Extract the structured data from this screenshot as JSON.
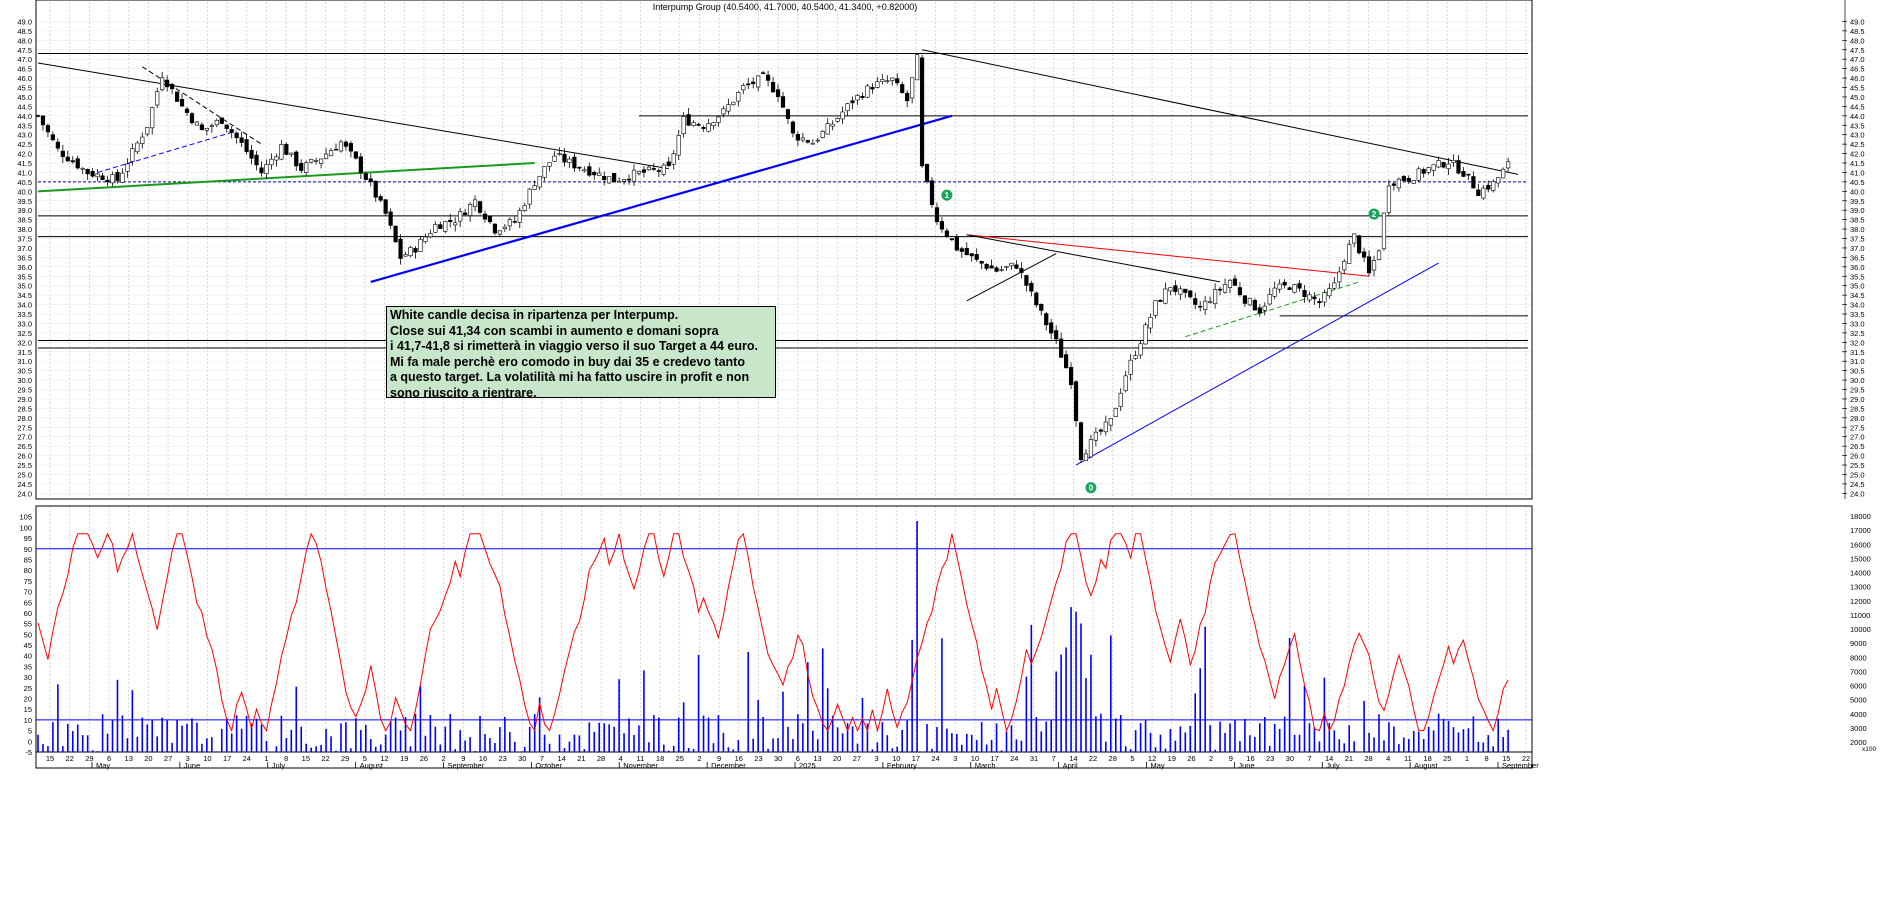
{
  "chart_data": [
    {
      "type": "candlestick",
      "title": "Interpump Group (40.5400, 41.7000, 40.5400, 41.3400, +0.82000)",
      "ylim": [
        23.7,
        49.5
      ],
      "yticks": [
        "24.0",
        "24.5",
        "25.0",
        "25.5",
        "26.0",
        "26.5",
        "27.0",
        "27.5",
        "28.0",
        "28.5",
        "29.0",
        "29.5",
        "30.0",
        "30.5",
        "31.0",
        "31.5",
        "32.0",
        "32.5",
        "33.0",
        "33.5",
        "34.0",
        "34.5",
        "35.0",
        "35.5",
        "36.0",
        "36.5",
        "37.0",
        "37.5",
        "38.0",
        "38.5",
        "39.0",
        "39.5",
        "40.0",
        "40.5",
        "41.0",
        "41.5",
        "42.0",
        "42.5",
        "43.0",
        "43.5",
        "44.0",
        "44.5",
        "45.0",
        "45.5",
        "46.0",
        "46.5",
        "47.0",
        "47.5",
        "48.0",
        "48.5",
        "49.0"
      ],
      "grid": true,
      "price_path": [
        [
          0,
          44.0
        ],
        [
          4,
          42.2
        ],
        [
          10,
          41.0
        ],
        [
          16,
          40.6
        ],
        [
          22,
          43.5
        ],
        [
          25,
          46.2
        ],
        [
          29,
          44.5
        ],
        [
          33,
          43.2
        ],
        [
          37,
          43.8
        ],
        [
          41,
          42.5
        ],
        [
          45,
          41.0
        ],
        [
          49,
          42.4
        ],
        [
          53,
          41.2
        ],
        [
          57,
          41.8
        ],
        [
          61,
          42.6
        ],
        [
          64,
          41.6
        ],
        [
          67,
          40.3
        ],
        [
          70,
          38.8
        ],
        [
          73,
          36.5
        ],
        [
          76,
          37.0
        ],
        [
          80,
          38.2
        ],
        [
          84,
          38.5
        ],
        [
          88,
          39.5
        ],
        [
          92,
          38.0
        ],
        [
          96,
          38.4
        ],
        [
          100,
          40.5
        ],
        [
          104,
          41.9
        ],
        [
          108,
          41.4
        ],
        [
          112,
          41.0
        ],
        [
          116,
          40.6
        ],
        [
          120,
          40.9
        ],
        [
          124,
          41.1
        ],
        [
          127,
          41.2
        ],
        [
          130,
          43.8
        ],
        [
          134,
          43.5
        ],
        [
          138,
          44.2
        ],
        [
          142,
          45.5
        ],
        [
          146,
          46.0
        ],
        [
          149,
          45.2
        ],
        [
          152,
          43.0
        ],
        [
          156,
          42.6
        ],
        [
          160,
          43.6
        ],
        [
          164,
          44.8
        ],
        [
          168,
          45.6
        ],
        [
          172,
          45.9
        ],
        [
          175,
          44.8
        ],
        [
          177,
          47.0
        ],
        [
          178,
          41.2
        ],
        [
          181,
          38.5
        ],
        [
          185,
          37.0
        ],
        [
          189,
          36.3
        ],
        [
          193,
          35.8
        ],
        [
          197,
          36.1
        ],
        [
          201,
          34.0
        ],
        [
          205,
          32.0
        ],
        [
          208,
          30.0
        ],
        [
          210,
          26.0
        ],
        [
          213,
          27.0
        ],
        [
          216,
          27.8
        ],
        [
          219,
          30.3
        ],
        [
          222,
          32.1
        ],
        [
          225,
          34.0
        ],
        [
          228,
          35.0
        ],
        [
          231,
          34.4
        ],
        [
          234,
          33.8
        ],
        [
          237,
          34.6
        ],
        [
          240,
          35.3
        ],
        [
          243,
          34.3
        ],
        [
          246,
          33.7
        ],
        [
          249,
          34.8
        ],
        [
          252,
          35.0
        ],
        [
          255,
          34.6
        ],
        [
          258,
          34.1
        ],
        [
          261,
          35.0
        ],
        [
          263,
          36.5
        ],
        [
          265,
          37.6
        ],
        [
          268,
          35.6
        ],
        [
          270,
          37.0
        ],
        [
          272,
          40.5
        ],
        [
          276,
          40.7
        ],
        [
          280,
          41.2
        ],
        [
          284,
          41.6
        ],
        [
          287,
          41.0
        ],
        [
          290,
          40.0
        ],
        [
          293,
          40.4
        ],
        [
          296,
          41.4
        ]
      ],
      "trendlines": [
        {
          "from": [
            0,
            46.8
          ],
          "to": [
            127,
            41.2
          ],
          "color": "#000000"
        },
        {
          "from": [
            178,
            47.5
          ],
          "to": [
            298,
            40.9
          ],
          "color": "#000000"
        },
        {
          "from": [
            0,
            40.0
          ],
          "to": [
            100,
            41.5
          ],
          "color": "#1a9a1a"
        },
        {
          "from": [
            67,
            35.2
          ],
          "to": [
            184,
            44.0
          ],
          "color": "#0000ff"
        },
        {
          "from": [
            209,
            25.5
          ],
          "to": [
            282,
            36.2
          ],
          "color": "#0000ff"
        },
        {
          "from": [
            187,
            37.7
          ],
          "to": [
            268,
            35.5
          ],
          "color": "#ff0000"
        },
        {
          "from": [
            187,
            37.7
          ],
          "to": [
            238,
            35.2
          ],
          "color": "#000000"
        },
        {
          "from": [
            187,
            34.2
          ],
          "to": [
            205,
            36.7
          ],
          "color": "#000000"
        },
        {
          "from": [
            21,
            46.6
          ],
          "to": [
            45,
            42.5
          ],
          "color": "#000000",
          "dashed": true
        },
        {
          "from": [
            12,
            41.0
          ],
          "to": [
            40,
            43.2
          ],
          "color": "#0000ff",
          "dashed": true
        },
        {
          "from": [
            231,
            32.3
          ],
          "to": [
            266,
            35.2
          ],
          "color": "#1a9a1a",
          "dashed": true
        }
      ],
      "horizontal_levels": [
        {
          "value": 47.3,
          "from": 0,
          "to": 300,
          "color": "#000000"
        },
        {
          "value": 44.0,
          "from": 121,
          "to": 300,
          "color": "#000000"
        },
        {
          "value": 40.5,
          "from": 0,
          "to": 300,
          "color": "#0000aa",
          "dashed": true
        },
        {
          "value": 38.7,
          "from": 0,
          "to": 300,
          "color": "#000000"
        },
        {
          "value": 37.6,
          "from": 0,
          "to": 300,
          "color": "#000000"
        },
        {
          "value": 33.4,
          "from": 250,
          "to": 300,
          "color": "#000000"
        },
        {
          "value": 32.1,
          "from": 0,
          "to": 300,
          "color": "#000000"
        },
        {
          "value": 31.7,
          "from": 0,
          "to": 300,
          "color": "#000000"
        }
      ],
      "markers": [
        {
          "label": "1",
          "x": 183,
          "value": 39.8
        },
        {
          "label": "0",
          "x": 212,
          "value": 24.3
        },
        {
          "label": "2",
          "x": 269,
          "value": 38.8
        }
      ]
    },
    {
      "type": "line+bar",
      "ylim": [
        -5,
        110
      ],
      "yticks_left": [
        "-5",
        "0",
        "5",
        "10",
        "15",
        "20",
        "25",
        "30",
        "35",
        "40",
        "45",
        "50",
        "55",
        "60",
        "65",
        "70",
        "75",
        "80",
        "85",
        "90",
        "95",
        "100",
        "105"
      ],
      "yticks_right": [
        "2000",
        "3000",
        "4000",
        "5000",
        "6000",
        "7000",
        "8000",
        "9000",
        "10000",
        "11000",
        "12000",
        "13000",
        "14000",
        "15000",
        "16000",
        "17000",
        "18000"
      ],
      "bands": [
        10,
        90
      ],
      "oscillator_color": "#ff0000",
      "volume_color": "#0000ff",
      "volume_scale_label": "x100"
    }
  ],
  "x_axis": {
    "day_labels": [
      "15",
      "22",
      "29",
      "6",
      "13",
      "20",
      "27",
      "3",
      "10",
      "17",
      "24",
      "1",
      "8",
      "15",
      "22",
      "29",
      "5",
      "12",
      "19",
      "26",
      "2",
      "9",
      "16",
      "23",
      "30",
      "7",
      "14",
      "21",
      "28",
      "4",
      "11",
      "18",
      "25",
      "2",
      "9",
      "16",
      "23",
      "30",
      "6",
      "13",
      "20",
      "27",
      "3",
      "10",
      "17",
      "24",
      "3",
      "10",
      "17",
      "24",
      "31",
      "7",
      "14",
      "22",
      "28",
      "5",
      "12",
      "19",
      "26",
      "2",
      "9",
      "16",
      "23",
      "30",
      "7",
      "14",
      "21",
      "28",
      "4",
      "11",
      "18",
      "25",
      "1",
      "8",
      "15",
      "22"
    ],
    "month_labels": [
      "May",
      "June",
      "July",
      "August",
      "September",
      "October",
      "November",
      "December",
      "2025",
      "February",
      "March",
      "April",
      "May",
      "June",
      "July",
      "August",
      "September"
    ]
  },
  "annotation": {
    "lines": [
      "White candle decisa in ripartenza per Interpump.",
      "Close sui 41,34 con scambi in aumento e domani sopra",
      "i 41,7-41,8 si rimetterà in viaggio verso il suo Target a 44 euro.",
      "Mi fa male perchè ero comodo in buy dai 35 e credevo tanto",
      "a questo target. La volatilità mi ha fatto uscire in profit e non",
      "sono riuscito a rientrare."
    ]
  },
  "colors": {
    "candle_up": "#ffffff",
    "candle_down": "#000000",
    "grid": "#c8c8c8",
    "annotation_bg": "#c8e6c9",
    "marker": "#1aa55a"
  }
}
